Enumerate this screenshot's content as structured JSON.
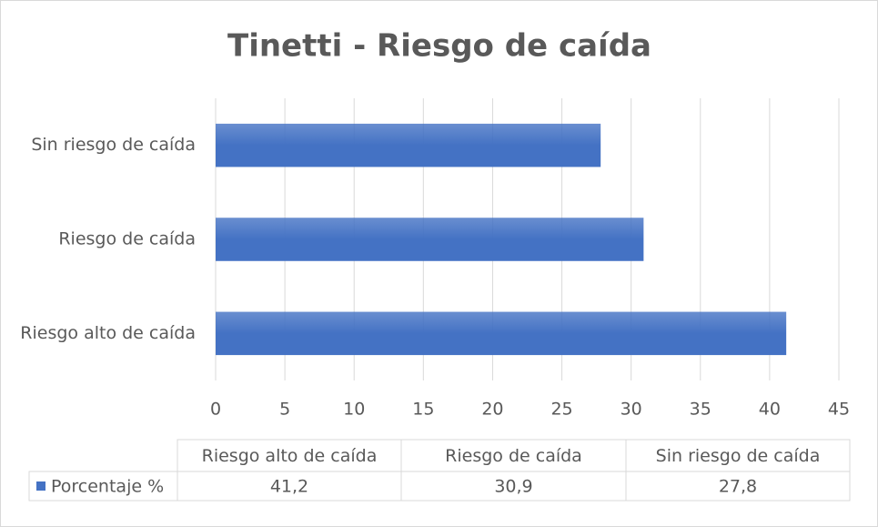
{
  "chart_data": {
    "type": "bar",
    "orientation": "horizontal",
    "title": "Tinetti - Riesgo de caída",
    "categories": [
      "Riesgo alto de caída",
      "Riesgo de caída",
      "Sin riesgo de caída"
    ],
    "series": [
      {
        "name": "Porcentaje %",
        "color": "#4472c4",
        "values": [
          41.2,
          30.9,
          27.8
        ],
        "value_labels": [
          "41,2",
          "30,9",
          "27,8"
        ]
      }
    ],
    "xlim": [
      0,
      45
    ],
    "xticks": [
      0,
      5,
      10,
      15,
      20,
      25,
      30,
      35,
      40,
      45
    ],
    "grid": true,
    "data_table": true
  }
}
